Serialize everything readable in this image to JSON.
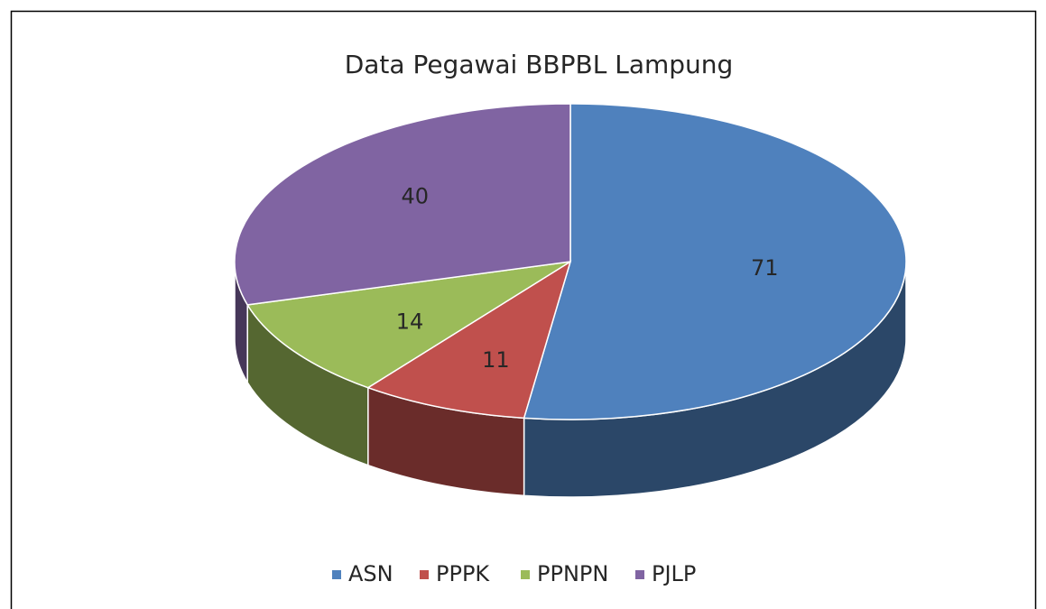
{
  "chart_data": {
    "type": "pie",
    "title": "Data Pegawai BBPBL Lampung",
    "categories": [
      "ASN",
      "PPPK",
      "PPNPN",
      "PJLP"
    ],
    "values": [
      71,
      11,
      14,
      40
    ],
    "colors": [
      "#4f81bd",
      "#c0504d",
      "#9bbb59",
      "#8064a2"
    ],
    "legend": "bottom"
  }
}
